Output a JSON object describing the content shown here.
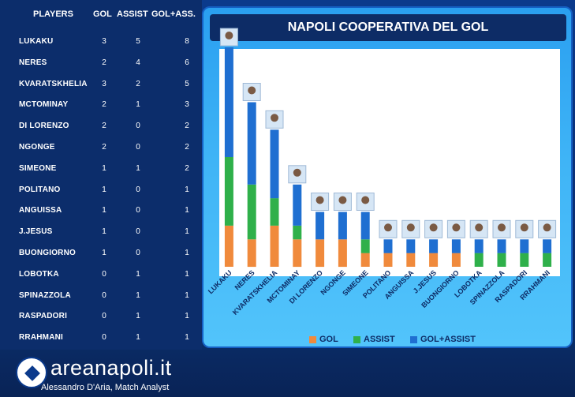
{
  "table": {
    "headers": {
      "player": "PLAYERS",
      "gol": "GOL",
      "assist": "ASSIST",
      "total": "GOL+ASS."
    },
    "rows": [
      {
        "player": "LUKAKU",
        "gol": "3",
        "assist": "5",
        "total": "8"
      },
      {
        "player": "NERES",
        "gol": "2",
        "assist": "4",
        "total": "6"
      },
      {
        "player": "KVARATSKHELIA",
        "gol": "3",
        "assist": "2",
        "total": "5"
      },
      {
        "player": "MCTOMINAY",
        "gol": "2",
        "assist": "1",
        "total": "3"
      },
      {
        "player": "DI LORENZO",
        "gol": "2",
        "assist": "0",
        "total": "2"
      },
      {
        "player": "NGONGE",
        "gol": "2",
        "assist": "0",
        "total": "2"
      },
      {
        "player": "SIMEONE",
        "gol": "1",
        "assist": "1",
        "total": "2"
      },
      {
        "player": "POLITANO",
        "gol": "1",
        "assist": "0",
        "total": "1"
      },
      {
        "player": "ANGUISSA",
        "gol": "1",
        "assist": "0",
        "total": "1"
      },
      {
        "player": "J.JESUS",
        "gol": "1",
        "assist": "0",
        "total": "1"
      },
      {
        "player": "BUONGIORNO",
        "gol": "1",
        "assist": "0",
        "total": "1"
      },
      {
        "player": "LOBOTKA",
        "gol": "0",
        "assist": "1",
        "total": "1"
      },
      {
        "player": "SPINAZZOLA",
        "gol": "0",
        "assist": "1",
        "total": "1"
      },
      {
        "player": "RASPADORI",
        "gol": "0",
        "assist": "1",
        "total": "1"
      },
      {
        "player": "RRAHMANI",
        "gol": "0",
        "assist": "1",
        "total": "1"
      }
    ]
  },
  "chart_data": {
    "type": "bar",
    "title": "NAPOLI COOPERATIVA DEL GOL",
    "categories": [
      "LUKAKU",
      "NERES",
      "KVARATSKHELIA",
      "MCTOMINAY",
      "DI LORENZO",
      "NGONGE",
      "SIMEONE",
      "POLITANO",
      "ANGUISSA",
      "J.JESUS",
      "BUONGIORNO",
      "LOBOTKA",
      "SPINAZZOLA",
      "RASPADORI",
      "RRAHMANI"
    ],
    "series": [
      {
        "name": "GOL",
        "values": [
          3,
          2,
          3,
          2,
          2,
          2,
          1,
          1,
          1,
          1,
          1,
          0,
          0,
          0,
          0
        ]
      },
      {
        "name": "ASSIST",
        "values": [
          5,
          4,
          2,
          1,
          0,
          0,
          1,
          0,
          0,
          0,
          0,
          1,
          1,
          1,
          1
        ]
      },
      {
        "name": "GOL+ASSIST",
        "values": [
          8,
          6,
          5,
          3,
          2,
          2,
          2,
          1,
          1,
          1,
          1,
          1,
          1,
          1,
          1
        ]
      }
    ],
    "stacked": true,
    "colors": {
      "GOL": "#f08a3c",
      "ASSIST": "#2fb04a",
      "GOL+ASSIST": "#1f6fd1"
    },
    "ylim": [
      0,
      16
    ],
    "legend": "bottom"
  },
  "branding": {
    "site": "areanapoli.it",
    "credit": "Alessandro D'Aria, Match Analyst"
  }
}
